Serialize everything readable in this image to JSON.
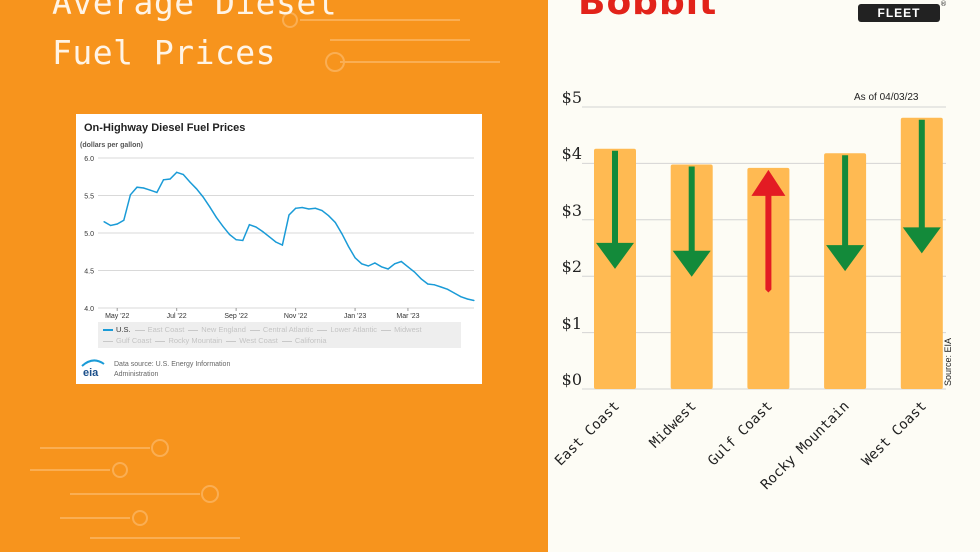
{
  "left_panel": {
    "title_lines": [
      "Average Diesel",
      "Fuel Prices"
    ],
    "background": "#f7941d",
    "card": {
      "title": "On-Highway Diesel Fuel Prices",
      "unit": "(dollars per gallon)",
      "legend_row1": [
        "U.S.",
        "East Coast",
        "New England",
        "Central Atlantic",
        "Lower Atlantic",
        "Midwest"
      ],
      "legend_row2": [
        "Gulf Coast",
        "Rocky Mountain",
        "West Coast",
        "California"
      ],
      "logo_text": "eia",
      "source_text": "Data source: U.S. Energy Information Administration"
    }
  },
  "right_panel": {
    "brand_text": "Bobbit",
    "fleet_badge": "FLEET",
    "registered_mark": "®",
    "as_of": "As of 04/03/23",
    "source": "Source: EIA"
  },
  "chart_data": [
    {
      "type": "line",
      "title": "On-Highway Diesel Fuel Prices",
      "ylabel": "(dollars per gallon)",
      "ylim": [
        4.0,
        6.0
      ],
      "yticks": [
        "4.0",
        "4.5",
        "5.0",
        "5.5",
        "6.0"
      ],
      "xticks": [
        "May '22",
        "Jul '22",
        "Sep '22",
        "Nov '22",
        "Jan '23",
        "Mar '23"
      ],
      "xtick_weeks": [
        2,
        11,
        20,
        29,
        38,
        46
      ],
      "grid": true,
      "legend_placement": "bottom",
      "series": [
        {
          "name": "U.S.",
          "color": "#1a9bd7",
          "values": [
            5.15,
            5.1,
            5.12,
            5.17,
            5.51,
            5.61,
            5.6,
            5.57,
            5.54,
            5.71,
            5.72,
            5.81,
            5.78,
            5.68,
            5.59,
            5.48,
            5.35,
            5.21,
            5.09,
            4.98,
            4.91,
            4.9,
            5.11,
            5.08,
            5.02,
            4.95,
            4.88,
            4.84,
            5.24,
            5.33,
            5.34,
            5.32,
            5.33,
            5.3,
            5.23,
            5.14,
            4.99,
            4.82,
            4.67,
            4.59,
            4.56,
            4.6,
            4.55,
            4.52,
            4.59,
            4.62,
            4.55,
            4.48,
            4.39,
            4.32,
            4.31,
            4.28,
            4.25,
            4.2,
            4.15,
            4.12,
            4.1
          ]
        }
      ]
    },
    {
      "type": "bar",
      "ylim": [
        0,
        5
      ],
      "yticks": [
        "$0",
        "$1",
        "$2",
        "$3",
        "$4",
        "$5"
      ],
      "grid": true,
      "bar_color": "#ffba52",
      "categories": [
        "East Coast",
        "Midwest",
        "Gulf Coast",
        "Rocky Mountain",
        "West Coast"
      ],
      "values": [
        4.26,
        3.98,
        3.92,
        4.18,
        4.81
      ],
      "trend": [
        "down",
        "down",
        "up",
        "down",
        "down"
      ],
      "trend_colors": {
        "down": "#138a3a",
        "up": "#e31b23"
      }
    }
  ]
}
